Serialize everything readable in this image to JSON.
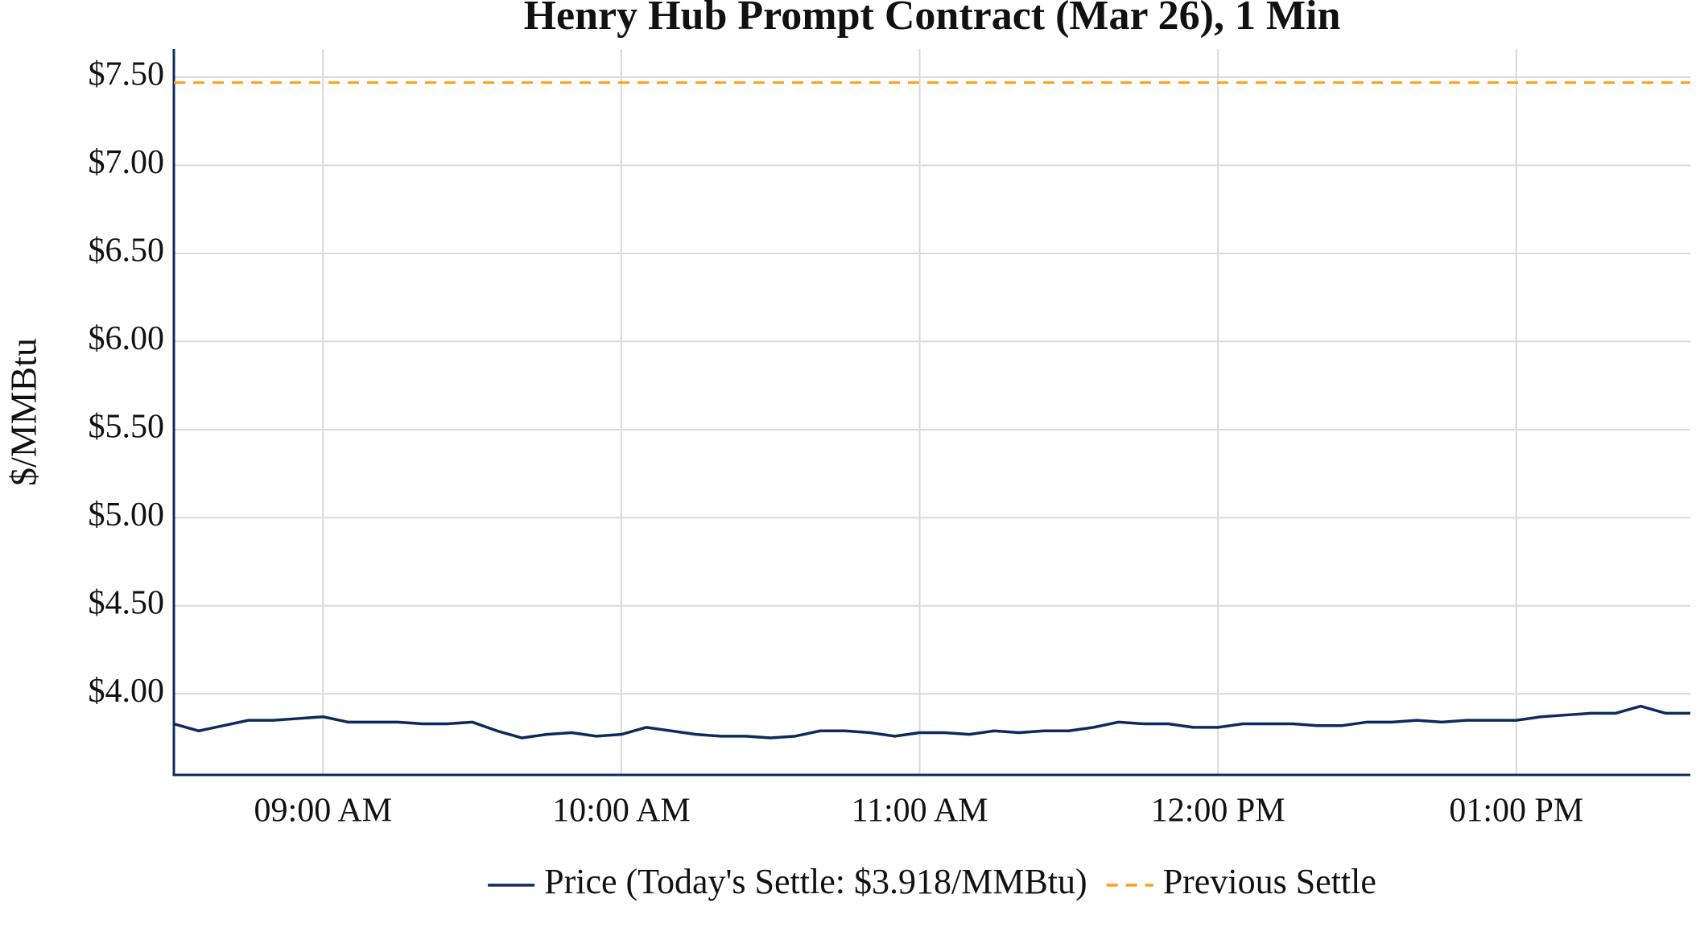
{
  "chart_data": {
    "type": "line",
    "title": "Henry Hub Prompt Contract (Mar 26), 1 Min",
    "ylabel": "$/MMBtu",
    "x": [
      "08:30 AM",
      "08:35 AM",
      "08:40 AM",
      "08:45 AM",
      "08:50 AM",
      "08:55 AM",
      "09:00 AM",
      "09:05 AM",
      "09:10 AM",
      "09:15 AM",
      "09:20 AM",
      "09:25 AM",
      "09:30 AM",
      "09:35 AM",
      "09:40 AM",
      "09:45 AM",
      "09:50 AM",
      "09:55 AM",
      "10:00 AM",
      "10:05 AM",
      "10:10 AM",
      "10:15 AM",
      "10:20 AM",
      "10:25 AM",
      "10:30 AM",
      "10:35 AM",
      "10:40 AM",
      "10:45 AM",
      "10:50 AM",
      "10:55 AM",
      "11:00 AM",
      "11:05 AM",
      "11:10 AM",
      "11:15 AM",
      "11:20 AM",
      "11:25 AM",
      "11:30 AM",
      "11:35 AM",
      "11:40 AM",
      "11:45 AM",
      "11:50 AM",
      "11:55 AM",
      "12:00 PM",
      "12:05 PM",
      "12:10 PM",
      "12:15 PM",
      "12:20 PM",
      "12:25 PM",
      "12:30 PM",
      "12:35 PM",
      "12:40 PM",
      "12:45 PM",
      "12:50 PM",
      "12:55 PM",
      "01:00 PM",
      "01:05 PM",
      "01:10 PM",
      "01:15 PM",
      "01:20 PM",
      "01:25 PM",
      "01:30 PM",
      "01:35 PM"
    ],
    "series": [
      {
        "name": "Price (Today's Settle: $3.918/MMBtu)",
        "color": "#0d2b5a",
        "values": [
          3.83,
          3.79,
          3.82,
          3.85,
          3.85,
          3.86,
          3.87,
          3.84,
          3.84,
          3.84,
          3.83,
          3.83,
          3.84,
          3.79,
          3.75,
          3.77,
          3.78,
          3.76,
          3.77,
          3.81,
          3.79,
          3.77,
          3.76,
          3.76,
          3.75,
          3.76,
          3.79,
          3.79,
          3.78,
          3.76,
          3.78,
          3.78,
          3.77,
          3.79,
          3.78,
          3.79,
          3.79,
          3.81,
          3.84,
          3.83,
          3.83,
          3.81,
          3.81,
          3.83,
          3.83,
          3.83,
          3.82,
          3.82,
          3.84,
          3.84,
          3.85,
          3.84,
          3.85,
          3.85,
          3.85,
          3.87,
          3.88,
          3.89,
          3.89,
          3.93,
          3.89,
          3.89
        ]
      }
    ],
    "reference_lines": [
      {
        "name": "Previous Settle",
        "value": 7.47,
        "color": "#ff9f1a",
        "dashed": true
      }
    ],
    "xlim": [
      "08:30 AM",
      "01:35 PM"
    ],
    "xticks": [
      "09:00 AM",
      "10:00 AM",
      "11:00 AM",
      "12:00 PM",
      "01:00 PM"
    ],
    "ylim": [
      3.54,
      7.66
    ],
    "yticks": [
      {
        "value": 4.0,
        "label": "$4.00"
      },
      {
        "value": 4.5,
        "label": "$4.50"
      },
      {
        "value": 5.0,
        "label": "$5.00"
      },
      {
        "value": 5.5,
        "label": "$5.50"
      },
      {
        "value": 6.0,
        "label": "$6.00"
      },
      {
        "value": 6.5,
        "label": "$6.50"
      },
      {
        "value": 7.0,
        "label": "$7.00"
      },
      {
        "value": 7.5,
        "label": "$7.50"
      }
    ],
    "grid": true,
    "legend": "bottom"
  }
}
